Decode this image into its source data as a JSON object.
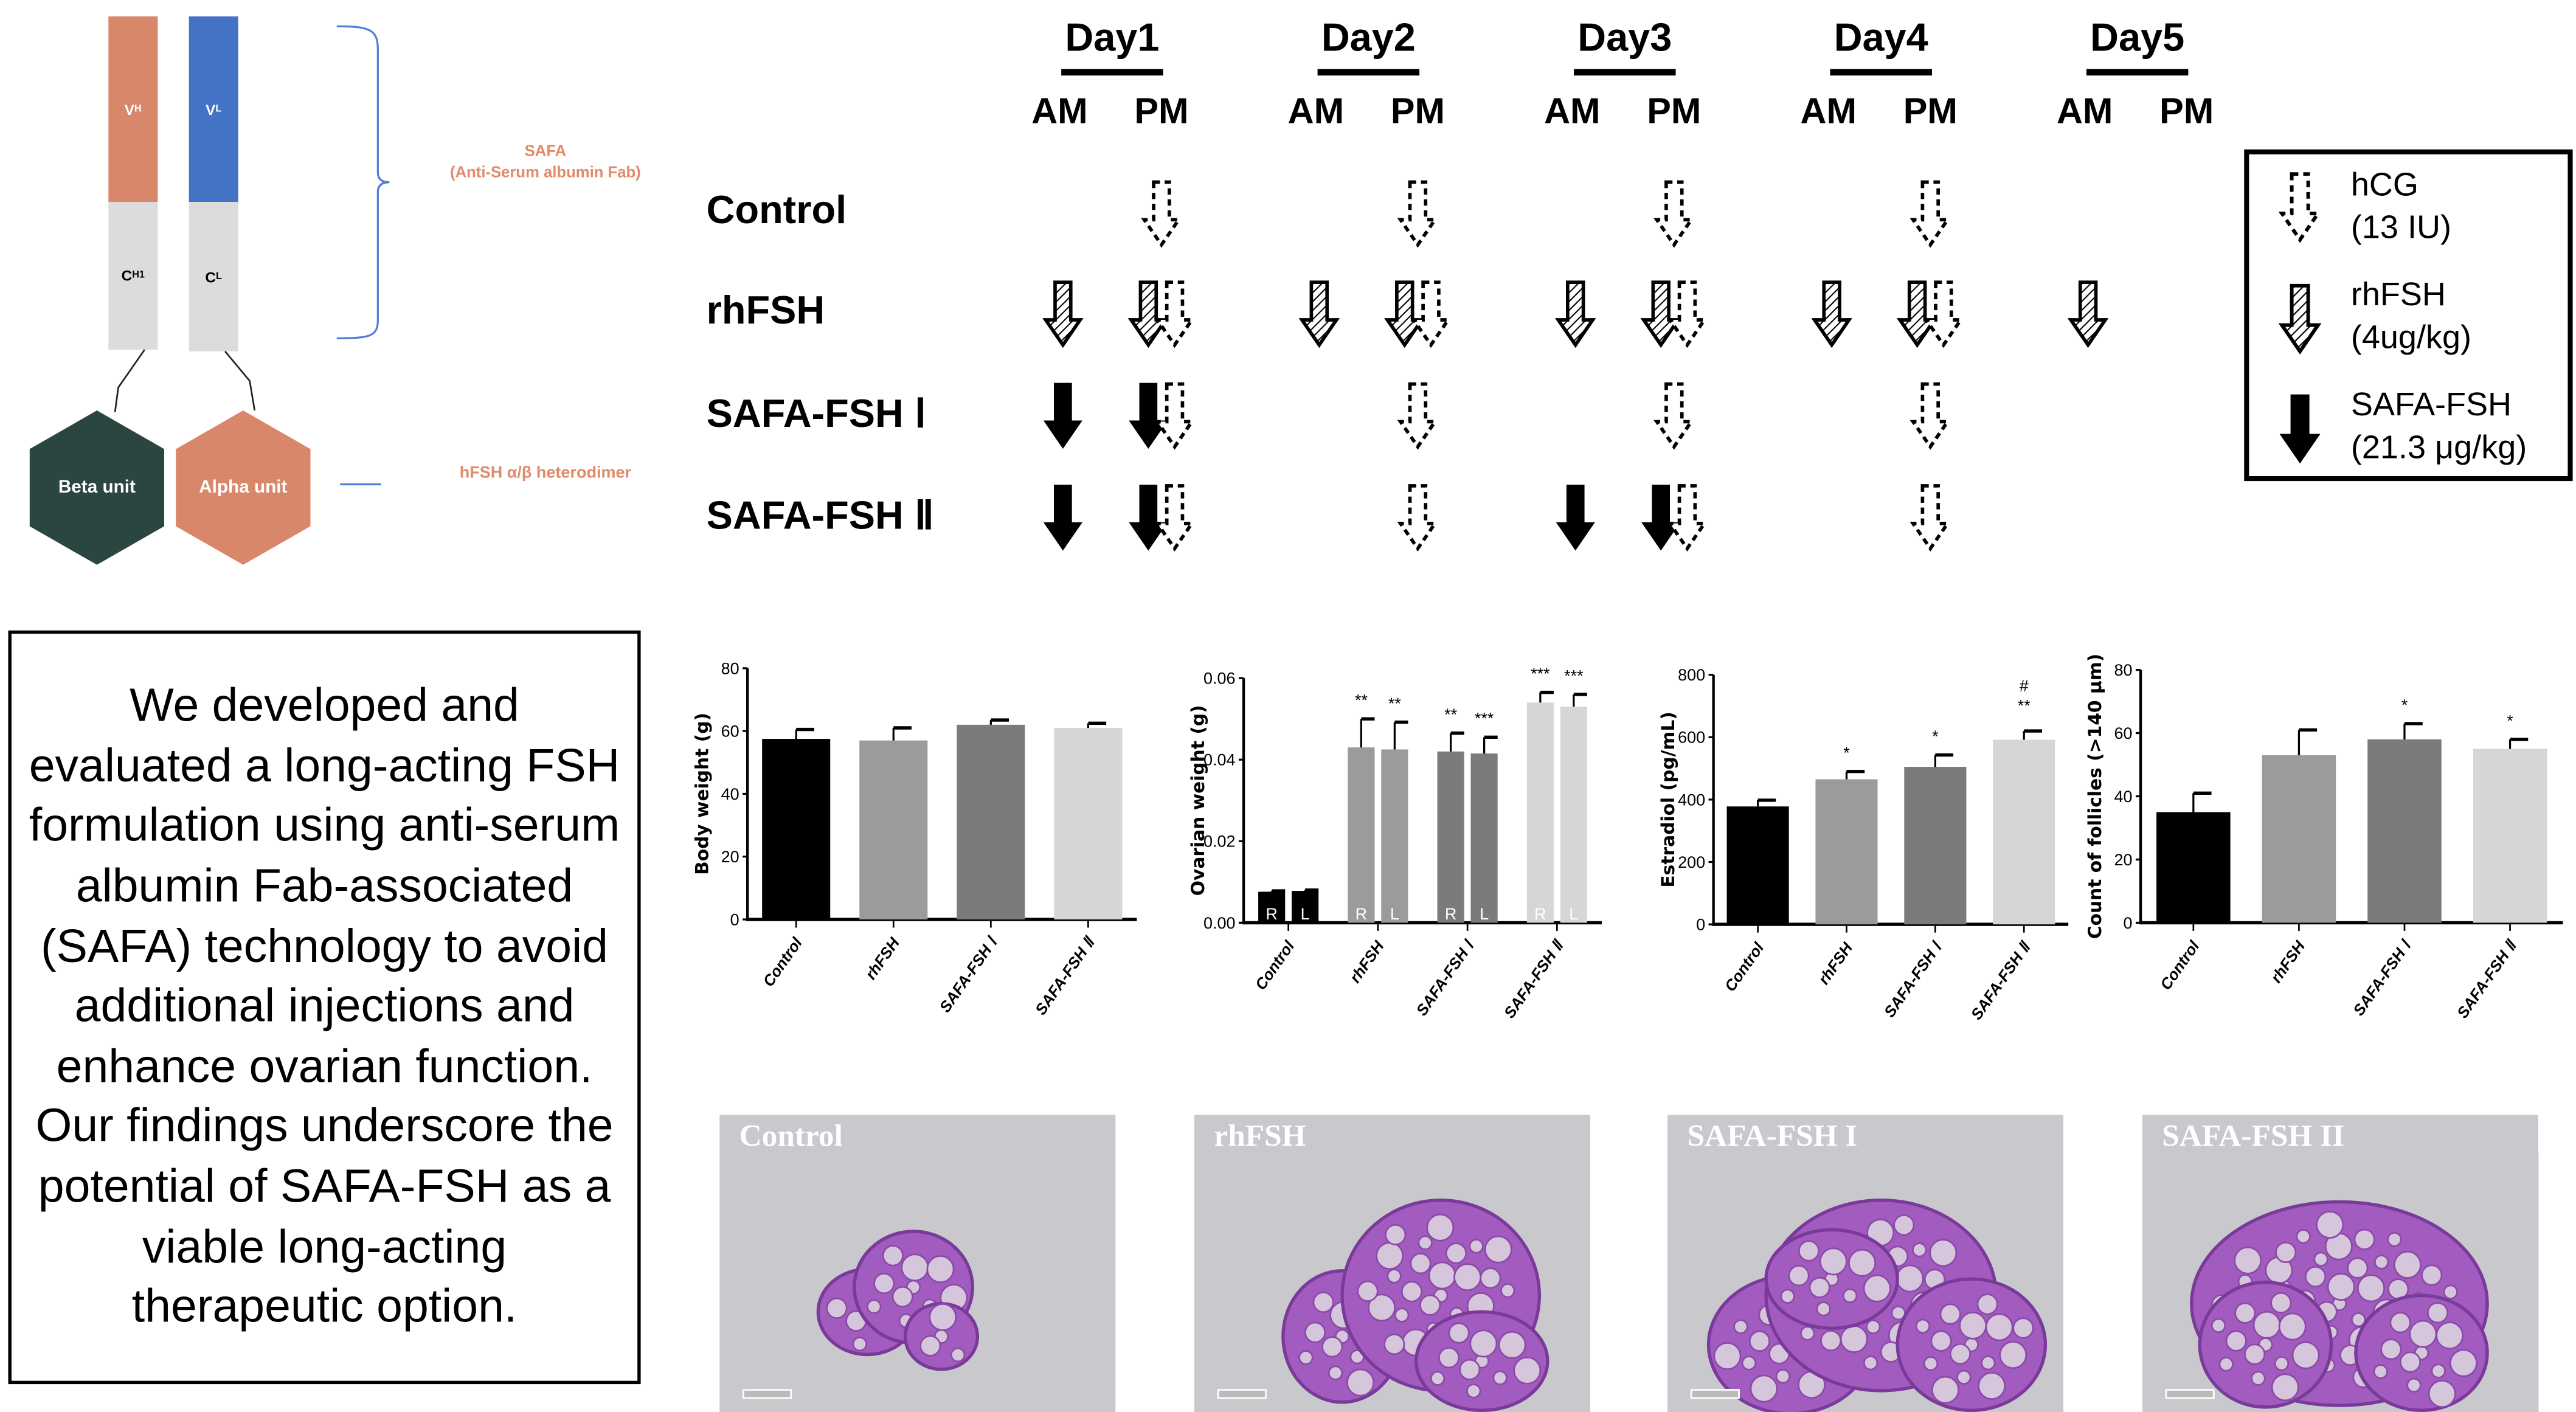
{
  "diagram": {
    "vh": "V",
    "vh_sub": "H",
    "vl": "V",
    "vl_sub": "L",
    "ch1": "C",
    "ch1_sub": "H1",
    "cl": "C",
    "cl_sub": "L",
    "safa_title": "SAFA",
    "safa_subtitle": "(Anti-Serum albumin Fab)",
    "beta": "Beta unit",
    "alpha": "Alpha unit",
    "heterodimer": "hFSH α/β heterodimer",
    "colors": {
      "vh": "#d9876a",
      "vl": "#4472c4",
      "constant": "#dcdcdc",
      "beta": "#2b4540",
      "alpha": "#d9876a",
      "brace": "#4f7fd6"
    }
  },
  "summary": "We developed and evaluated a long-acting FSH formulation using anti-serum albumin Fab-associated (SAFA) technology to avoid additional injections and enhance ovarian function. Our findings underscore the potential of SAFA-FSH as a viable long-acting therapeutic option.",
  "schedule": {
    "days": [
      "Day1",
      "Day2",
      "Day3",
      "Day4",
      "Day5"
    ],
    "am": "AM",
    "pm": "PM",
    "rows": [
      {
        "label": "Control",
        "doses": {
          "hcg": [
            "1PM",
            "2PM",
            "3PM",
            "4PM"
          ],
          "rhfsh": [],
          "safa": []
        }
      },
      {
        "label": "rhFSH",
        "doses": {
          "hcg": [
            "1PM",
            "2PM",
            "3PM",
            "4PM"
          ],
          "rhfsh": [
            "1AM",
            "1PM",
            "2AM",
            "2PM",
            "3AM",
            "3PM",
            "4AM",
            "4PM",
            "5AM"
          ],
          "safa": []
        }
      },
      {
        "label": "SAFA-FSH Ⅰ",
        "doses": {
          "hcg": [
            "1PM",
            "2PM",
            "3PM",
            "4PM"
          ],
          "rhfsh": [],
          "safa": [
            "1AM",
            "1PM"
          ]
        }
      },
      {
        "label": "SAFA-FSH Ⅱ",
        "doses": {
          "hcg": [
            "1PM",
            "2PM",
            "3PM",
            "4PM"
          ],
          "rhfsh": [],
          "safa": [
            "1AM",
            "1PM",
            "3AM",
            "3PM"
          ]
        }
      }
    ],
    "legend": [
      {
        "icon": "dashed-arrow",
        "name": "hCG",
        "dose": "(13 IU)"
      },
      {
        "icon": "hatched-arrow",
        "name": "rhFSH",
        "dose": "(4ug/kg)"
      },
      {
        "icon": "solid-arrow",
        "name": "SAFA-FSH",
        "dose": "(21.3 μg/kg)"
      }
    ]
  },
  "chart_data": [
    {
      "type": "bar",
      "title": "",
      "ylabel": "Body weight (g)",
      "ylim": [
        0,
        80
      ],
      "yticks": [
        "0",
        "20",
        "40",
        "60",
        "80"
      ],
      "ytick_values": [
        0,
        20,
        40,
        60,
        80
      ],
      "categories": [
        "Control",
        "rhFSH",
        "SAFA-FSH Ⅰ",
        "SAFA-FSH Ⅱ"
      ],
      "values": [
        57.5,
        57,
        62,
        61
      ],
      "errors": [
        3,
        4,
        1.5,
        1.5
      ],
      "annotations": [
        "",
        "",
        "",
        ""
      ],
      "colors": [
        "#000000",
        "#9b9b9d",
        "#7b7b7d",
        "#d6d6d6"
      ]
    },
    {
      "type": "bar",
      "title": "",
      "ylabel": "Ovarian weight (g)",
      "ylim": [
        0,
        0.06
      ],
      "yticks": [
        "0.00",
        "0.02",
        "0.04",
        "0.06"
      ],
      "ytick_values": [
        0,
        0.02,
        0.04,
        0.06
      ],
      "categories": [
        "Control",
        "rhFSH",
        "SAFA-FSH Ⅰ",
        "SAFA-FSH Ⅱ"
      ],
      "sub_labels": [
        "R",
        "L"
      ],
      "series": [
        {
          "name": "R",
          "values": [
            0.0076,
            0.043,
            0.042,
            0.054
          ],
          "errors": [
            0.0002,
            0.007,
            0.0045,
            0.0025
          ],
          "annotations": [
            "",
            "**",
            "**",
            "***"
          ]
        },
        {
          "name": "L",
          "values": [
            0.0078,
            0.0425,
            0.0415,
            0.053
          ],
          "errors": [
            0.0002,
            0.0067,
            0.004,
            0.003
          ],
          "annotations": [
            "",
            "**",
            "***",
            "***"
          ]
        }
      ],
      "colors": [
        "#000000",
        "#9b9b9d",
        "#7b7b7d",
        "#d6d6d6"
      ]
    },
    {
      "type": "bar",
      "title": "",
      "ylabel": "Estradiol (pg/mL)",
      "ylim": [
        0,
        800
      ],
      "yticks": [
        "0",
        "200",
        "400",
        "600",
        "800"
      ],
      "ytick_values": [
        0,
        200,
        400,
        600,
        800
      ],
      "categories": [
        "Control",
        "rhFSH",
        "SAFA-FSH Ⅰ",
        "SAFA-FSH Ⅱ"
      ],
      "values": [
        378,
        465,
        505,
        592
      ],
      "errors": [
        20,
        25,
        38,
        28
      ],
      "annotations": [
        "",
        "*",
        "*",
        "**"
      ],
      "annotations2": [
        "",
        "",
        "",
        "#"
      ],
      "colors": [
        "#000000",
        "#9b9b9d",
        "#7b7b7d",
        "#d6d6d6"
      ]
    },
    {
      "type": "bar",
      "title": "",
      "ylabel": "Count of follicles (>140 μm)",
      "ylim": [
        0,
        80
      ],
      "yticks": [
        "0",
        "20",
        "40",
        "60",
        "80"
      ],
      "ytick_values": [
        0,
        20,
        40,
        60,
        80
      ],
      "categories": [
        "Control",
        "rhFSH",
        "SAFA-FSH Ⅰ",
        "SAFA-FSH Ⅱ"
      ],
      "values": [
        35,
        53,
        58,
        55
      ],
      "errors": [
        6,
        8,
        5,
        3
      ],
      "annotations": [
        "",
        "",
        "*",
        "*"
      ],
      "colors": [
        "#000000",
        "#9b9b9d",
        "#7b7b7d",
        "#d6d6d6"
      ]
    }
  ],
  "micrographs": [
    {
      "label": "Control"
    },
    {
      "label": "rhFSH"
    },
    {
      "label": "SAFA-FSH I"
    },
    {
      "label": "SAFA-FSH II"
    }
  ]
}
